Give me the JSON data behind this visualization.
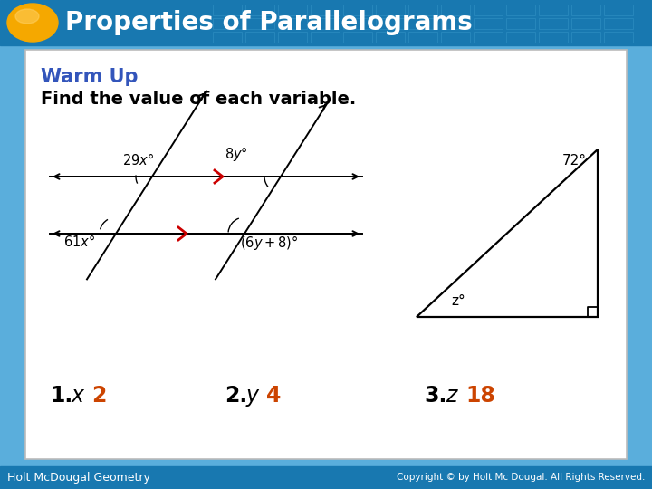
{
  "title": "Properties of Parallelograms",
  "header_bg": "#1e82be",
  "header_text_color": "#ffffff",
  "oval_color": "#f5a800",
  "footer_bg": "#1e82be",
  "footer_text": "Holt McDougal Geometry",
  "footer_copyright": "Copyright © by Holt Mc Dougal. All Rights Reserved.",
  "warmup_color": "#3355bb",
  "warmup_title": "Warm Up",
  "warmup_subtitle": "Find the value of each variable.",
  "answer_color": "#cc4400",
  "slide_bg": "#5aaedc",
  "answers": [
    {
      "label": "1.",
      "var": "x",
      "val": "2"
    },
    {
      "label": "2.",
      "var": "y",
      "val": "4"
    },
    {
      "label": "3.",
      "var": "z",
      "val": "18"
    }
  ]
}
